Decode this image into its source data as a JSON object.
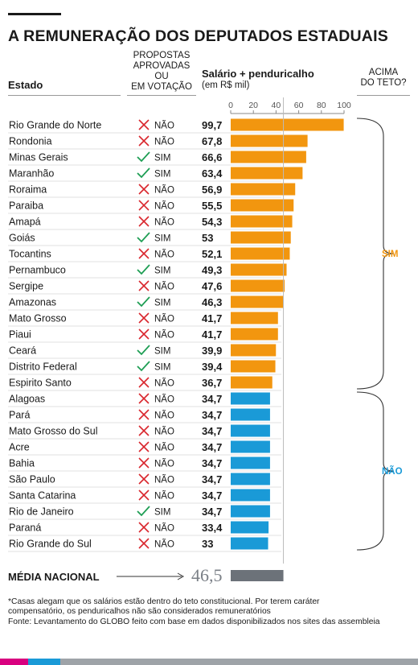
{
  "title": "A REMUNERAÇÃO DOS DEPUTADOS ESTADUAIS",
  "headers": {
    "estado": "Estado",
    "propostas": [
      "PROPOSTAS",
      "APROVADAS OU",
      "EM VOTAÇÃO"
    ],
    "salario": "Salário + penduricalho",
    "salario_unit": "(em R$ mil)",
    "acima": [
      "ACIMA",
      "DO TETO?"
    ]
  },
  "colors": {
    "sim_bar": "#f2960f",
    "nao_bar": "#1a9ad7",
    "check": "#1e9e54",
    "cross": "#d9272e",
    "sim_text": "#f2960f",
    "nao_text": "#1a9ad7",
    "media_bar": "#6c7279"
  },
  "group_labels": {
    "sim": "SIM",
    "nao": "NÃO"
  },
  "chart_data": {
    "type": "bar",
    "orientation": "horizontal",
    "xlim": [
      0,
      100
    ],
    "xticks": [
      "0",
      "20",
      "40",
      "60",
      "80",
      "100"
    ],
    "categories": [
      "Rio Grande do Norte",
      "Rondonia",
      "Minas Gerais",
      "Maranhão",
      "Roraima",
      "Paraiba",
      "Amapá",
      "Goiás",
      "Tocantins",
      "Pernambuco",
      "Sergipe",
      "Amazonas",
      "Mato Grosso",
      "Piaui",
      "Ceará",
      "Distrito Federal",
      "Espirito Santo",
      "Alagoas",
      "Pará",
      "Mato Grosso do Sul",
      "Acre",
      "Bahia",
      "São Paulo",
      "Santa Catarina",
      "Rio de Janeiro",
      "Paraná",
      "Rio Grande do Sul"
    ],
    "values": [
      99.7,
      67.8,
      66.6,
      63.4,
      56.9,
      55.5,
      54.3,
      53,
      52.1,
      49.3,
      47.6,
      46.3,
      41.7,
      41.7,
      39.9,
      39.4,
      36.7,
      34.7,
      34.7,
      34.7,
      34.7,
      34.7,
      34.7,
      34.7,
      34.7,
      33.4,
      33
    ],
    "value_labels": [
      "99,7",
      "67,8",
      "66,6",
      "63,4",
      "56,9",
      "55,5",
      "54,3",
      "53",
      "52,1",
      "49,3",
      "47,6",
      "46,3",
      "41,7",
      "41,7",
      "39,9",
      "39,4",
      "36,7",
      "34,7",
      "34,7",
      "34,7",
      "34,7",
      "34,7",
      "34,7",
      "34,7",
      "34,7",
      "33,4",
      "33"
    ],
    "propostas": [
      "NÃO",
      "NÃO",
      "SIM",
      "SIM",
      "NÃO",
      "NÃO",
      "NÃO",
      "SIM",
      "NÃO",
      "SIM",
      "NÃO",
      "SIM",
      "NÃO",
      "NÃO",
      "SIM",
      "SIM",
      "NÃO",
      "NÃO",
      "NÃO",
      "NÃO",
      "NÃO",
      "NÃO",
      "NÃO",
      "NÃO",
      "SIM",
      "NÃO",
      "NÃO"
    ],
    "acima_do_teto": [
      "SIM",
      "SIM",
      "SIM",
      "SIM",
      "SIM",
      "SIM",
      "SIM",
      "SIM",
      "SIM",
      "SIM",
      "SIM",
      "SIM",
      "SIM",
      "SIM",
      "SIM",
      "SIM",
      "SIM",
      "NÃO",
      "NÃO",
      "NÃO",
      "NÃO",
      "NÃO",
      "NÃO",
      "NÃO",
      "NÃO",
      "NÃO",
      "NÃO"
    ],
    "reference_line": 46.5,
    "media": {
      "label": "MÉDIA NACIONAL",
      "value": 46.5,
      "value_label": "46,5"
    }
  },
  "footnote": [
    "*Casas alegam que os salários estão dentro do teto constitucional. Por terem caráter",
    "compensatório, os penduricalhos não são considerados remuneratórios",
    "Fonte: Levantamento do GLOBO feito com base em dados disponibilizados nos sites das assembleia"
  ]
}
